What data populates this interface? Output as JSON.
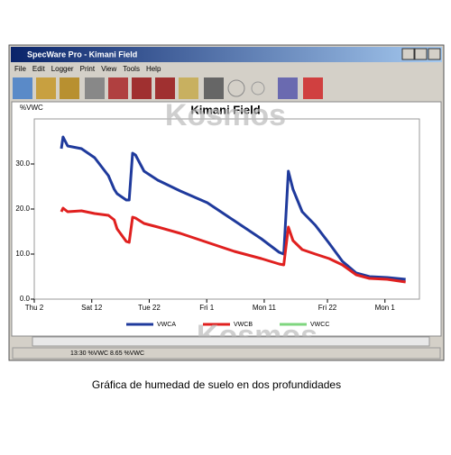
{
  "window": {
    "title": "SpecWare Pro - Kimani Field",
    "menu": [
      "File",
      "Edit",
      "Logger",
      "Print",
      "View",
      "Tools",
      "Help"
    ],
    "status": "13:30 %VWC 8.65 %VWC"
  },
  "watermark": "Kosmos",
  "caption": "Gráfica de humedad de suelo en dos profundidades",
  "chart_data": {
    "type": "line",
    "title": "Kimani Field",
    "y_label": "%VWC",
    "x": [
      4.7,
      5.0,
      5.8,
      8.2,
      10.5,
      12.9,
      13.9,
      14.4,
      16.0,
      16.5,
      17.1,
      17.6,
      19.1,
      21.5,
      25.4,
      30.1,
      34.8,
      39.5,
      42.6,
      43.4,
      44.2,
      45.0,
      46.6,
      48.9,
      51.3,
      53.6,
      56.0,
      58.3,
      61.4,
      64.6
    ],
    "xlim": [
      0,
      67
    ],
    "xticks": [
      {
        "value": 0,
        "label": "Thu 2"
      },
      {
        "value": 10,
        "label": "Sat 12"
      },
      {
        "value": 20,
        "label": "Tue 22"
      },
      {
        "value": 30,
        "label": "Fri 1"
      },
      {
        "value": 40,
        "label": "Mon 11"
      },
      {
        "value": 51,
        "label": "Fri 22"
      },
      {
        "value": 61,
        "label": "Mon 1"
      }
    ],
    "ylim": [
      0,
      40
    ],
    "yticks": [
      {
        "value": 0,
        "label": "0.0"
      },
      {
        "value": 10,
        "label": "10.0"
      },
      {
        "value": 20,
        "label": "20.0"
      },
      {
        "value": 30,
        "label": "30.0"
      }
    ],
    "series": [
      {
        "name": "VWCA",
        "color": "#1f3a9c",
        "values": [
          33.4,
          36,
          34,
          33.4,
          31.4,
          27.4,
          24.4,
          23.4,
          22,
          22,
          32.4,
          32,
          28.4,
          26.4,
          24,
          21.4,
          17.4,
          13.4,
          10.4,
          10.0,
          28.4,
          24.4,
          19.4,
          16.4,
          12.4,
          8.4,
          5.8,
          5,
          4.8,
          4.4
        ]
      },
      {
        "name": "VWCB",
        "color": "#e0201f",
        "values": [
          19.4,
          20.2,
          19.4,
          19.6,
          19,
          18.6,
          17.6,
          15.6,
          12.8,
          12.6,
          18.2,
          18,
          16.8,
          16,
          14.6,
          12.6,
          10.6,
          9,
          7.8,
          7.6,
          16,
          13,
          11,
          10,
          9,
          7.6,
          5.4,
          4.6,
          4.4,
          3.8
        ]
      },
      {
        "name": "VWCC",
        "color": "#7fd67f",
        "values": [
          null,
          null,
          null,
          null,
          null,
          null,
          null,
          null,
          null,
          null,
          null,
          null,
          null,
          null,
          null,
          null,
          null,
          null,
          null,
          null,
          null,
          null,
          null,
          null,
          null,
          null,
          null,
          null,
          null,
          null
        ]
      }
    ]
  }
}
